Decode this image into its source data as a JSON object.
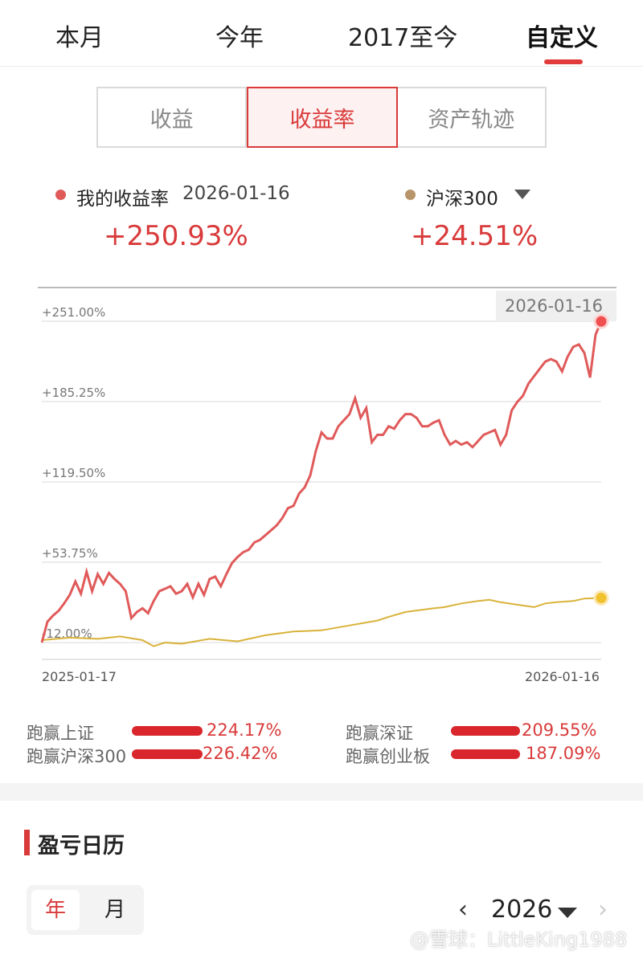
{
  "period_tabs": [
    "本月",
    "今年",
    "2017至今",
    "自定义"
  ],
  "segments": [
    "收益",
    "收益率",
    "资产轨迹"
  ],
  "legend": {
    "mine_label": "我的收益率",
    "date": "2026-01-16",
    "mine_value": "+250.93%",
    "bench_label": "沪深300",
    "bench_value": "+24.51%"
  },
  "colors": {
    "accent": "#d93a3a",
    "mine_line": "#e05a5a",
    "bench_line": "#d9b23a",
    "bench_dot": "#b8946a"
  },
  "chart_data": {
    "type": "line",
    "title": "",
    "x_start": "2025-01-17",
    "x_end": "2026-01-16",
    "tooltip_date": "2026-01-16",
    "y_ticks": [
      "+251.00%",
      "+185.25%",
      "+119.50%",
      "+53.75%",
      "-12.00%"
    ],
    "ylim": [
      -12.0,
      251.0
    ],
    "series": [
      {
        "name": "我的收益率",
        "t": [
          0,
          0.01,
          0.02,
          0.03,
          0.04,
          0.05,
          0.06,
          0.07,
          0.08,
          0.09,
          0.1,
          0.11,
          0.12,
          0.13,
          0.14,
          0.15,
          0.16,
          0.17,
          0.18,
          0.19,
          0.2,
          0.21,
          0.22,
          0.23,
          0.24,
          0.25,
          0.26,
          0.27,
          0.28,
          0.29,
          0.3,
          0.31,
          0.32,
          0.33,
          0.34,
          0.35,
          0.36,
          0.37,
          0.38,
          0.39,
          0.4,
          0.41,
          0.42,
          0.43,
          0.44,
          0.45,
          0.46,
          0.47,
          0.48,
          0.49,
          0.5,
          0.51,
          0.52,
          0.53,
          0.54,
          0.55,
          0.56,
          0.57,
          0.58,
          0.59,
          0.6,
          0.61,
          0.62,
          0.63,
          0.64,
          0.65,
          0.66,
          0.67,
          0.68,
          0.69,
          0.7,
          0.71,
          0.72,
          0.73,
          0.74,
          0.75,
          0.76,
          0.77,
          0.78,
          0.79,
          0.8,
          0.81,
          0.82,
          0.83,
          0.84,
          0.85,
          0.86,
          0.87,
          0.88,
          0.89,
          0.9,
          0.91,
          0.92,
          0.93,
          0.94,
          0.95,
          0.96,
          0.97,
          0.98,
          0.99,
          1.0
        ],
        "values": [
          -12,
          5,
          10,
          14,
          20,
          27,
          38,
          28,
          46,
          30,
          44,
          36,
          45,
          40,
          36,
          30,
          8,
          13,
          16,
          12,
          22,
          30,
          32,
          34,
          28,
          30,
          36,
          25,
          36,
          27,
          40,
          42,
          34,
          44,
          53,
          58,
          62,
          64,
          70,
          72,
          76,
          80,
          84,
          90,
          98,
          100,
          110,
          115,
          125,
          145,
          160,
          155,
          155,
          165,
          170,
          175,
          188,
          172,
          180,
          152,
          158,
          158,
          165,
          163,
          170,
          175,
          175,
          172,
          165,
          165,
          168,
          170,
          158,
          150,
          153,
          150,
          152,
          148,
          153,
          158,
          160,
          162,
          150,
          158,
          178,
          185,
          190,
          200,
          206,
          212,
          218,
          220,
          218,
          210,
          222,
          230,
          232,
          225,
          205,
          240,
          250.93
        ]
      },
      {
        "name": "沪深300",
        "t": [
          0,
          0.05,
          0.1,
          0.14,
          0.18,
          0.2,
          0.22,
          0.25,
          0.3,
          0.35,
          0.4,
          0.45,
          0.5,
          0.55,
          0.6,
          0.62,
          0.65,
          0.7,
          0.72,
          0.75,
          0.78,
          0.8,
          0.82,
          0.85,
          0.88,
          0.9,
          0.92,
          0.95,
          0.97,
          1.0
        ],
        "values": [
          -10,
          -8,
          -9,
          -7,
          -10,
          -15,
          -12,
          -13,
          -9,
          -11,
          -6,
          -3,
          -2,
          2,
          6,
          9,
          13,
          16,
          17,
          20,
          22,
          23,
          21,
          19,
          17,
          20,
          21,
          22,
          24,
          24.51
        ]
      }
    ]
  },
  "beat": {
    "items": [
      {
        "label": "跑赢上证",
        "value": "224.17%"
      },
      {
        "label": "跑赢深证",
        "value": "209.55%"
      },
      {
        "label": "跑赢沪深300",
        "value": "226.42%"
      },
      {
        "label": "跑赢创业板",
        "value": "187.09%"
      }
    ]
  },
  "calendar": {
    "section_title": "盈亏日历",
    "year_tab": "年",
    "month_tab": "月",
    "prev": "‹",
    "year": "2026",
    "next": "›"
  },
  "watermark": "@雪球：LittleKing1988"
}
